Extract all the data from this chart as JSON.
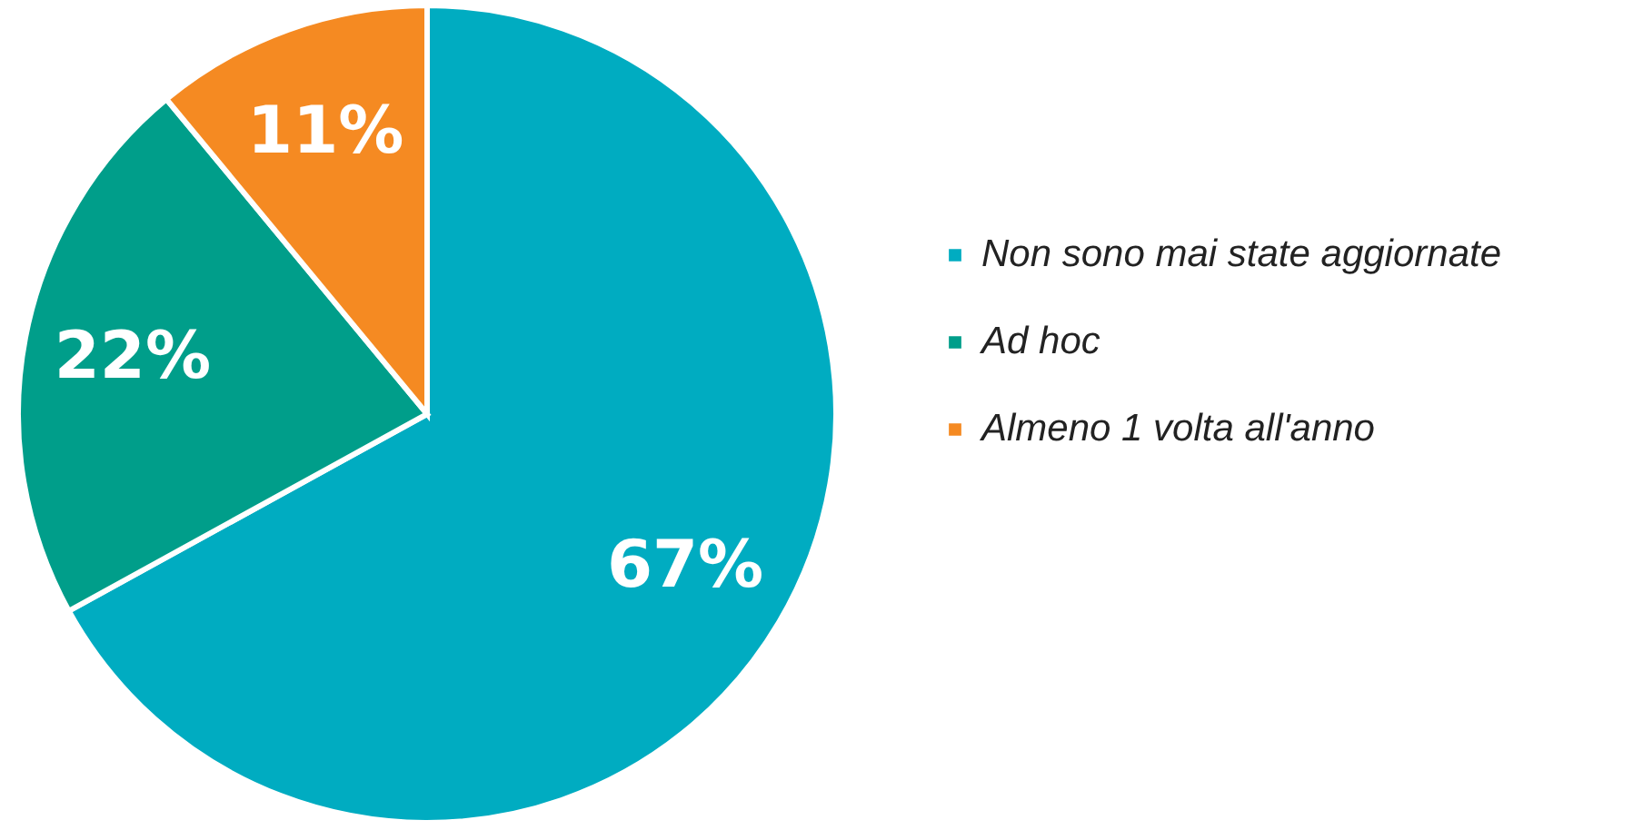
{
  "chart_data": {
    "type": "pie",
    "categories": [
      "Non sono mai state aggiornate",
      "Ad hoc",
      "Almeno 1 volta all'anno"
    ],
    "values": [
      67,
      22,
      11
    ],
    "colors": [
      "#00acc1",
      "#009e8a",
      "#f58a22"
    ],
    "value_labels": [
      "67%",
      "22%",
      "11%"
    ],
    "legend": "right"
  }
}
